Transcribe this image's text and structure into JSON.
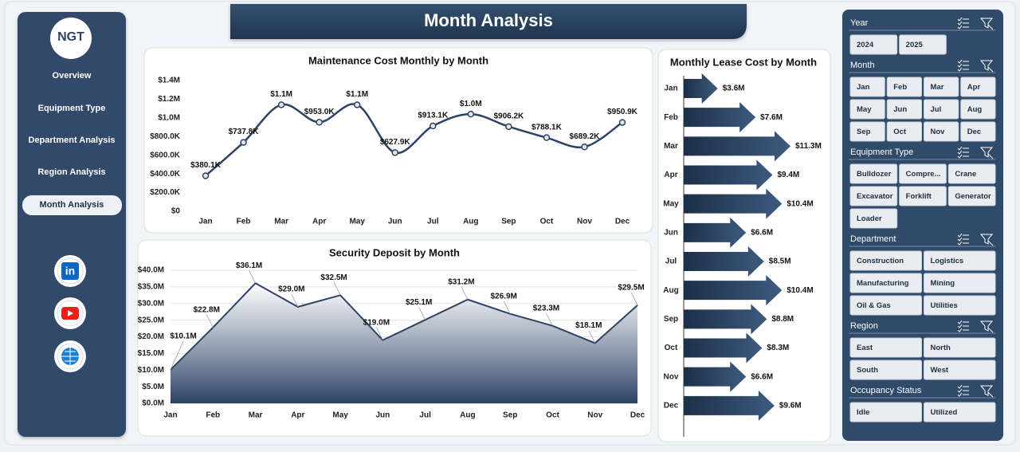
{
  "sidebar": {
    "logo": "NGT",
    "nav": [
      "Overview",
      "Equipment Type",
      "Department Analysis",
      "Region Analysis",
      "Month Analysis"
    ],
    "active": 4,
    "social": [
      "in"
    ]
  },
  "header": {
    "title": "Month Analysis"
  },
  "chart_data": [
    {
      "type": "line",
      "title": "Maintenance Cost Monthly by Month",
      "color": "#2c4365",
      "categories": [
        "Jan",
        "Feb",
        "Mar",
        "Apr",
        "May",
        "Jun",
        "Jul",
        "Aug",
        "Sep",
        "Oct",
        "Nov",
        "Dec"
      ],
      "values": [
        380100,
        737800,
        1140000,
        953000,
        1140000,
        627900,
        913100,
        1040000,
        906200,
        788100,
        689200,
        950900
      ],
      "value_labels": [
        "$380.1K",
        "$737.8K",
        "$1.1M",
        "$953.0K",
        "$1.1M",
        "$627.9K",
        "$913.1K",
        "$1.0M",
        "$906.2K",
        "$788.1K",
        "$689.2K",
        "$950.9K"
      ],
      "ylim": [
        0,
        1400000
      ],
      "yticks": [
        {
          "value": 0,
          "label": "$0"
        },
        {
          "value": 200000,
          "label": "$200.0K"
        },
        {
          "value": 400000,
          "label": "$400.0K"
        },
        {
          "value": 600000,
          "label": "$600.0K"
        },
        {
          "value": 800000,
          "label": "$800.0K"
        },
        {
          "value": 1000000,
          "label": "$1.0M"
        },
        {
          "value": 1200000,
          "label": "$1.2M"
        },
        {
          "value": 1400000,
          "label": "$1.4M"
        }
      ],
      "grid": false
    },
    {
      "type": "area",
      "title": "Security Deposit by Month",
      "color": "#2c4365",
      "categories": [
        "Jan",
        "Feb",
        "Mar",
        "Apr",
        "May",
        "Jun",
        "Jul",
        "Aug",
        "Sep",
        "Oct",
        "Nov",
        "Dec"
      ],
      "values": [
        10100000,
        22800000,
        36100000,
        29000000,
        32500000,
        19000000,
        25100000,
        31200000,
        26900000,
        23300000,
        18100000,
        29500000
      ],
      "value_labels": [
        "$10.1M",
        "$22.8M",
        "$36.1M",
        "$29.0M",
        "$32.5M",
        "$19.0M",
        "$25.1M",
        "$31.2M",
        "$26.9M",
        "$23.3M",
        "$18.1M",
        "$29.5M"
      ],
      "ylim": [
        0,
        40000000
      ],
      "yticks": [
        {
          "value": 0,
          "label": "$0.0M"
        },
        {
          "value": 5000000,
          "label": "$5.0M"
        },
        {
          "value": 10000000,
          "label": "$10.0M"
        },
        {
          "value": 15000000,
          "label": "$15.0M"
        },
        {
          "value": 20000000,
          "label": "$20.0M"
        },
        {
          "value": 25000000,
          "label": "$25.0M"
        },
        {
          "value": 30000000,
          "label": "$30.0M"
        },
        {
          "value": 35000000,
          "label": "$35.0M"
        },
        {
          "value": 40000000,
          "label": "$40.0M"
        }
      ],
      "grid": true
    },
    {
      "type": "bar",
      "orientation": "horizontal",
      "title": "Monthly Lease Cost by Month",
      "color": "#2c4365",
      "categories": [
        "Jan",
        "Feb",
        "Mar",
        "Apr",
        "May",
        "Jun",
        "Jul",
        "Aug",
        "Sep",
        "Oct",
        "Nov",
        "Dec"
      ],
      "values": [
        3600000,
        7600000,
        11300000,
        9400000,
        10400000,
        6600000,
        8500000,
        10400000,
        8800000,
        8300000,
        6600000,
        9600000
      ],
      "value_labels": [
        "$3.6M",
        "$7.6M",
        "$11.3M",
        "$9.4M",
        "$10.4M",
        "$6.6M",
        "$8.5M",
        "$10.4M",
        "$8.8M",
        "$8.3M",
        "$6.6M",
        "$9.6M"
      ]
    }
  ],
  "slicers": [
    {
      "title": "Year",
      "items": [
        "2024",
        "2025"
      ]
    },
    {
      "title": "Month",
      "items": [
        "Jan",
        "Feb",
        "Mar",
        "Apr",
        "May",
        "Jun",
        "Jul",
        "Aug",
        "Sep",
        "Oct",
        "Nov",
        "Dec"
      ]
    },
    {
      "title": "Equipment Type",
      "items": [
        "Bulldozer",
        "Compre...",
        "Crane",
        "Excavator",
        "Forklift",
        "Generator",
        "Loader"
      ]
    },
    {
      "title": "Department",
      "items": [
        "Construction",
        "Logistics",
        "Manufacturing",
        "Mining",
        "Oil & Gas",
        "Utilities"
      ]
    },
    {
      "title": "Region",
      "items": [
        "East",
        "North",
        "South",
        "West"
      ]
    },
    {
      "title": "Occupancy Status",
      "items": [
        "Idle",
        "Utilized"
      ]
    }
  ]
}
